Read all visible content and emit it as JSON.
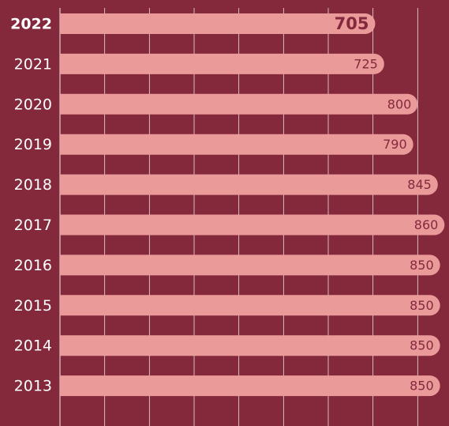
{
  "chart_data": {
    "type": "barh",
    "categories": [
      "2022",
      "2021",
      "2020",
      "2019",
      "2018",
      "2017",
      "2016",
      "2015",
      "2014",
      "2013"
    ],
    "values": [
      705,
      725,
      800,
      790,
      845,
      860,
      850,
      850,
      850,
      850
    ],
    "color": "#eb9a9a",
    "xlim": [
      0,
      870
    ],
    "xticks": [
      0,
      100,
      200,
      300,
      400,
      500,
      600,
      700,
      800
    ],
    "grid": true,
    "highlight": "2022"
  }
}
